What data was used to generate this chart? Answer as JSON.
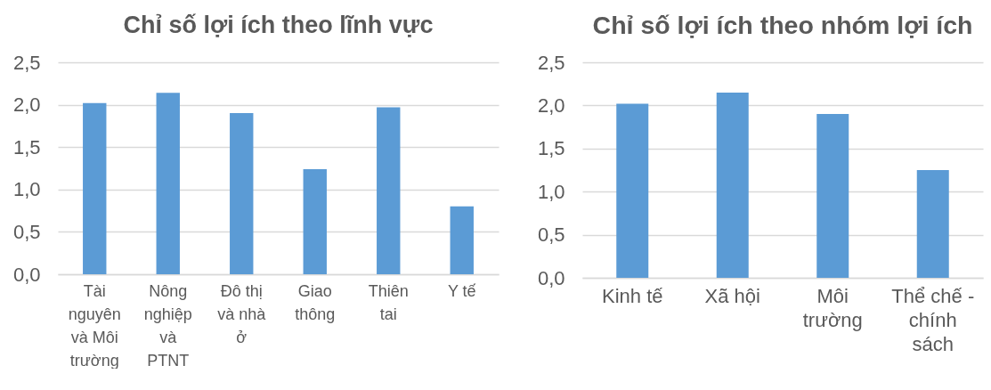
{
  "chart_data": [
    {
      "type": "bar",
      "title": "Chỉ số lợi ích theo lĩnh vực",
      "categories": [
        "Tài nguyên và Môi trường",
        "Nông nghiệp và PTNT",
        "Đô thị và nhà ở",
        "Giao thông",
        "Thiên tai",
        "Y tế"
      ],
      "values": [
        2.02,
        2.14,
        1.9,
        1.24,
        1.97,
        0.8
      ],
      "color": "#5b9bd5",
      "ylim": [
        0,
        2.5
      ],
      "yticks": [
        {
          "value": 0,
          "label": "0,0"
        },
        {
          "value": 0.5,
          "label": "0,5"
        },
        {
          "value": 1,
          "label": "1,0"
        },
        {
          "value": 1.5,
          "label": "1,5"
        },
        {
          "value": 2,
          "label": "2,0"
        },
        {
          "value": 2.5,
          "label": "2,5"
        }
      ],
      "grid": "y"
    },
    {
      "type": "bar",
      "title": "Chỉ số lợi ích theo nhóm lợi ích",
      "categories": [
        "Kinh tế",
        "Xã hội",
        "Môi trường",
        "Thể chế - chính sách"
      ],
      "values": [
        2.02,
        2.15,
        1.9,
        1.25
      ],
      "color": "#5b9bd5",
      "ylim": [
        0,
        2.5
      ],
      "yticks": [
        {
          "value": 0,
          "label": "0,0"
        },
        {
          "value": 0.5,
          "label": "0,5"
        },
        {
          "value": 1,
          "label": "1,0"
        },
        {
          "value": 1.5,
          "label": "1,5"
        },
        {
          "value": 2,
          "label": "2,0"
        },
        {
          "value": 2.5,
          "label": "2,5"
        }
      ],
      "grid": "y"
    }
  ]
}
